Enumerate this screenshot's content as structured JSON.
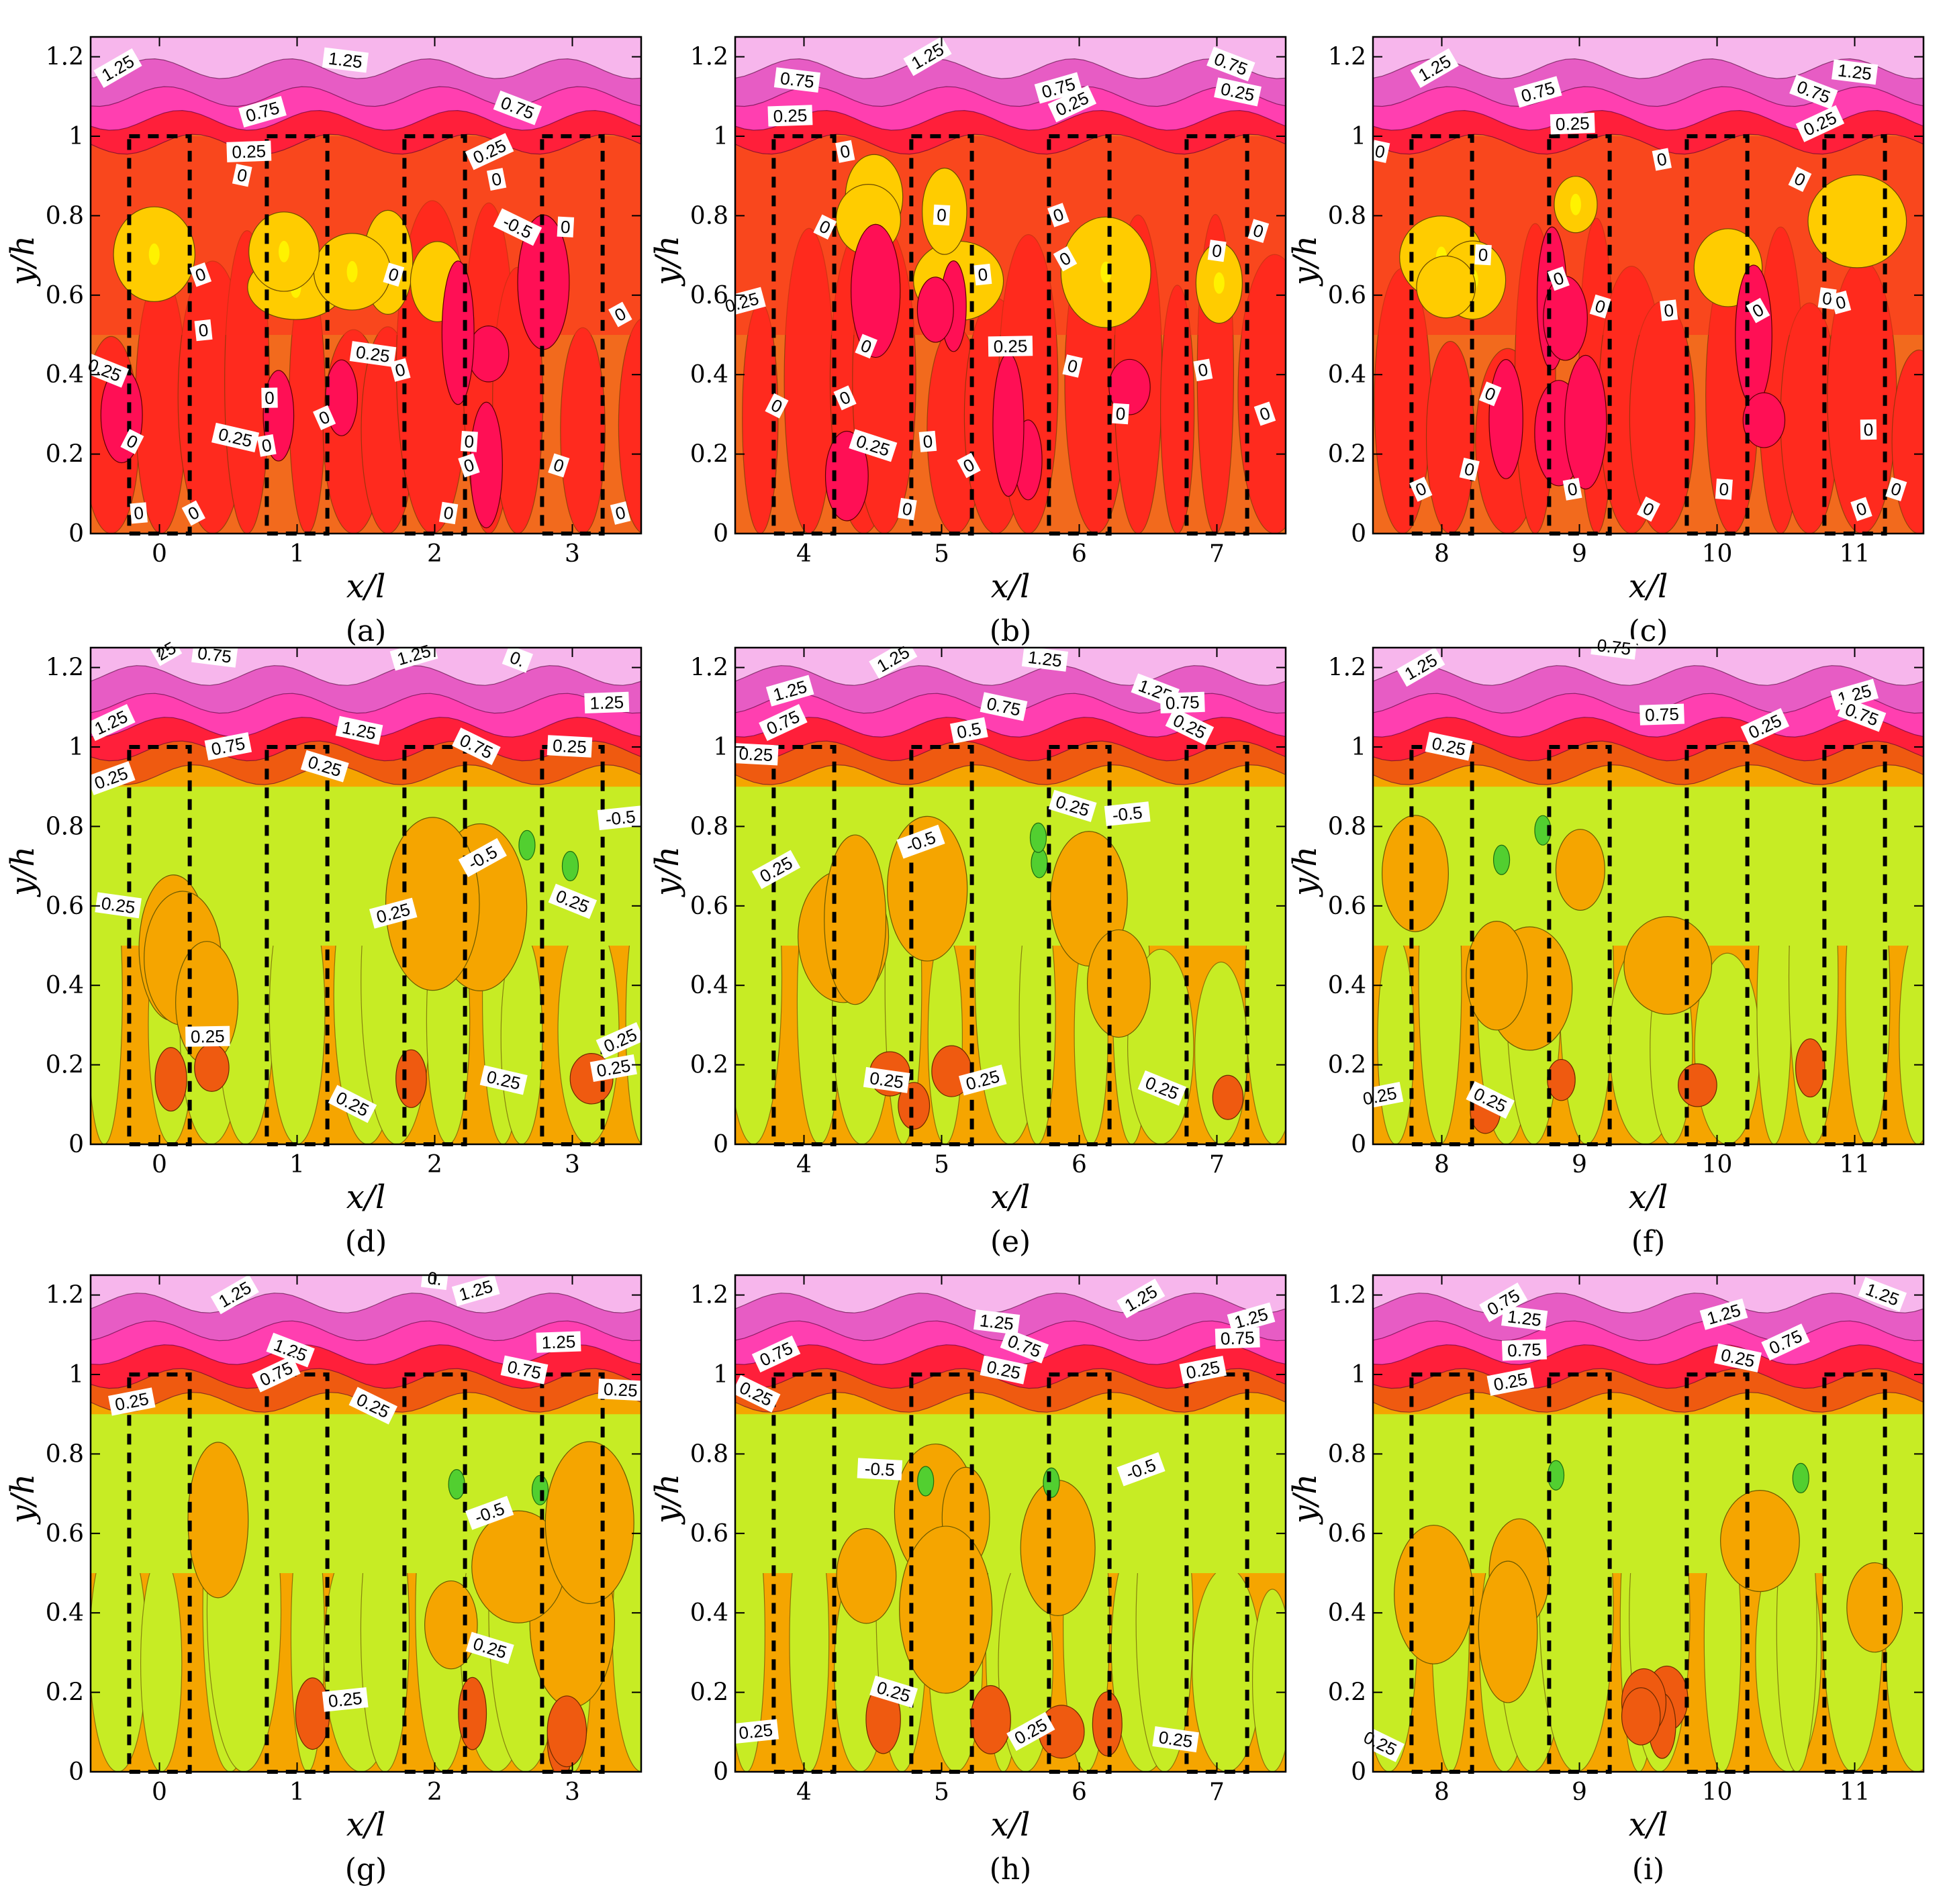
{
  "chart_data": [
    {
      "panel": "(a)",
      "type": "heatmap",
      "plot_kind": "contour",
      "xlabel": "x/l",
      "ylabel": "y/h",
      "xlim": [
        -0.5,
        3.5
      ],
      "ylim": [
        0,
        1.25
      ],
      "xticks": [
        0,
        1,
        2,
        3
      ],
      "yticks": [
        0,
        0.2,
        0.4,
        0.6,
        0.8,
        1,
        1.2
      ],
      "scheme": "warm",
      "contour_labels": [
        {
          "text": "1.25",
          "x": -0.3,
          "y": 1.17
        },
        {
          "text": "1.25",
          "x": 1.35,
          "y": 1.19
        },
        {
          "text": "0.75",
          "x": 0.75,
          "y": 1.06
        },
        {
          "text": "0.75",
          "x": 2.6,
          "y": 1.07
        },
        {
          "text": "0.25",
          "x": 0.65,
          "y": 0.96
        },
        {
          "text": "0.25",
          "x": 2.4,
          "y": 0.96
        },
        {
          "text": "0",
          "x": 0.6,
          "y": 0.9
        },
        {
          "text": "0",
          "x": 2.45,
          "y": 0.89
        },
        {
          "text": "-0.5",
          "x": 2.6,
          "y": 0.77
        },
        {
          "text": "0",
          "x": 2.95,
          "y": 0.77
        },
        {
          "text": "0",
          "x": 0.3,
          "y": 0.65
        },
        {
          "text": "0",
          "x": 1.7,
          "y": 0.65
        },
        {
          "text": "0",
          "x": 0.32,
          "y": 0.51
        },
        {
          "text": "0",
          "x": 3.35,
          "y": 0.55
        },
        {
          "text": "0.25",
          "x": 1.55,
          "y": 0.45
        },
        {
          "text": "0",
          "x": 1.75,
          "y": 0.41
        },
        {
          "text": "0.25",
          "x": -0.4,
          "y": 0.41
        },
        {
          "text": "0",
          "x": 0.8,
          "y": 0.34
        },
        {
          "text": "0",
          "x": 1.2,
          "y": 0.29
        },
        {
          "text": "0.25",
          "x": 0.55,
          "y": 0.24
        },
        {
          "text": "0",
          "x": 0.78,
          "y": 0.22
        },
        {
          "text": "0",
          "x": -0.2,
          "y": 0.23
        },
        {
          "text": "0",
          "x": 2.25,
          "y": 0.23
        },
        {
          "text": "0",
          "x": 2.25,
          "y": 0.17
        },
        {
          "text": "0",
          "x": 2.9,
          "y": 0.17
        },
        {
          "text": "0",
          "x": -0.15,
          "y": 0.05
        },
        {
          "text": "0",
          "x": 0.25,
          "y": 0.05
        },
        {
          "text": "0",
          "x": 2.1,
          "y": 0.05
        },
        {
          "text": "0",
          "x": 3.35,
          "y": 0.05
        }
      ]
    },
    {
      "panel": "(b)",
      "type": "heatmap",
      "plot_kind": "contour",
      "xlabel": "x/l",
      "ylabel": "y/h",
      "xlim": [
        3.5,
        7.5
      ],
      "ylim": [
        0,
        1.25
      ],
      "xticks": [
        4,
        5,
        6,
        7
      ],
      "yticks": [
        0,
        0.2,
        0.4,
        0.6,
        0.8,
        1,
        1.2
      ],
      "scheme": "warm",
      "contour_labels": [
        {
          "text": "1.25",
          "x": 4.9,
          "y": 1.2
        },
        {
          "text": "0.75",
          "x": 3.95,
          "y": 1.14
        },
        {
          "text": "0.75",
          "x": 5.85,
          "y": 1.12
        },
        {
          "text": "0.75",
          "x": 7.1,
          "y": 1.18
        },
        {
          "text": "0.25",
          "x": 3.9,
          "y": 1.05
        },
        {
          "text": "0.25",
          "x": 5.95,
          "y": 1.08
        },
        {
          "text": "0.25",
          "x": 7.15,
          "y": 1.11
        },
        {
          "text": "0",
          "x": 4.3,
          "y": 0.96
        },
        {
          "text": "0",
          "x": 4.15,
          "y": 0.77
        },
        {
          "text": "0",
          "x": 5.0,
          "y": 0.8
        },
        {
          "text": "0",
          "x": 5.85,
          "y": 0.8
        },
        {
          "text": "0",
          "x": 7.3,
          "y": 0.76
        },
        {
          "text": "0",
          "x": 5.3,
          "y": 0.65
        },
        {
          "text": "0",
          "x": 5.9,
          "y": 0.69
        },
        {
          "text": "0",
          "x": 7.0,
          "y": 0.71
        },
        {
          "text": "0.25",
          "x": 3.55,
          "y": 0.58
        },
        {
          "text": "0",
          "x": 4.45,
          "y": 0.47
        },
        {
          "text": "0.25",
          "x": 5.5,
          "y": 0.47
        },
        {
          "text": "0",
          "x": 4.3,
          "y": 0.34
        },
        {
          "text": "0",
          "x": 5.95,
          "y": 0.42
        },
        {
          "text": "0",
          "x": 6.9,
          "y": 0.41
        },
        {
          "text": "0",
          "x": 3.8,
          "y": 0.32
        },
        {
          "text": "0",
          "x": 6.3,
          "y": 0.3
        },
        {
          "text": "0",
          "x": 7.35,
          "y": 0.3
        },
        {
          "text": "0.25",
          "x": 4.5,
          "y": 0.22
        },
        {
          "text": "0",
          "x": 4.9,
          "y": 0.23
        },
        {
          "text": "0",
          "x": 5.2,
          "y": 0.17
        },
        {
          "text": "0",
          "x": 4.75,
          "y": 0.06
        }
      ]
    },
    {
      "panel": "(c)",
      "type": "heatmap",
      "plot_kind": "contour",
      "xlabel": "x/l",
      "ylabel": "y/h",
      "xlim": [
        7.5,
        11.5
      ],
      "ylim": [
        0,
        1.25
      ],
      "xticks": [
        8,
        9,
        10,
        11
      ],
      "yticks": [
        0,
        0.2,
        0.4,
        0.6,
        0.8,
        1,
        1.2
      ],
      "scheme": "warm",
      "contour_labels": [
        {
          "text": "1.25",
          "x": 7.95,
          "y": 1.17
        },
        {
          "text": "1.25",
          "x": 11.0,
          "y": 1.16
        },
        {
          "text": "0.75",
          "x": 8.7,
          "y": 1.11
        },
        {
          "text": "0.75",
          "x": 10.7,
          "y": 1.11
        },
        {
          "text": "0.25",
          "x": 8.95,
          "y": 1.03
        },
        {
          "text": "0.25",
          "x": 10.75,
          "y": 1.03
        },
        {
          "text": "0",
          "x": 7.55,
          "y": 0.96
        },
        {
          "text": "0",
          "x": 9.6,
          "y": 0.94
        },
        {
          "text": "0",
          "x": 10.6,
          "y": 0.89
        },
        {
          "text": "0",
          "x": 8.3,
          "y": 0.7
        },
        {
          "text": "0",
          "x": 8.85,
          "y": 0.64
        },
        {
          "text": "0",
          "x": 9.15,
          "y": 0.57
        },
        {
          "text": "0",
          "x": 9.65,
          "y": 0.56
        },
        {
          "text": "0",
          "x": 10.3,
          "y": 0.56
        },
        {
          "text": "0",
          "x": 10.8,
          "y": 0.59
        },
        {
          "text": "0",
          "x": 10.9,
          "y": 0.58
        },
        {
          "text": "0",
          "x": 8.35,
          "y": 0.35
        },
        {
          "text": "0",
          "x": 11.1,
          "y": 0.26
        },
        {
          "text": "0",
          "x": 7.85,
          "y": 0.11
        },
        {
          "text": "0",
          "x": 8.2,
          "y": 0.16
        },
        {
          "text": "0",
          "x": 8.95,
          "y": 0.11
        },
        {
          "text": "0",
          "x": 9.5,
          "y": 0.06
        },
        {
          "text": "0",
          "x": 10.05,
          "y": 0.11
        },
        {
          "text": "0",
          "x": 11.05,
          "y": 0.06
        },
        {
          "text": "0",
          "x": 11.3,
          "y": 0.11
        }
      ]
    },
    {
      "panel": "(d)",
      "type": "heatmap",
      "plot_kind": "contour",
      "xlabel": "x/l",
      "ylabel": "y/h",
      "xlim": [
        -0.5,
        3.5
      ],
      "ylim": [
        0,
        1.25
      ],
      "xticks": [
        0,
        1,
        2,
        3
      ],
      "yticks": [
        0,
        0.2,
        0.4,
        0.6,
        0.8,
        1,
        1.2
      ],
      "scheme": "cool",
      "contour_labels": [
        {
          "text": "25",
          "x": 0.05,
          "y": 1.24
        },
        {
          "text": "0.75",
          "x": 0.4,
          "y": 1.23
        },
        {
          "text": "1.25",
          "x": 1.85,
          "y": 1.23
        },
        {
          "text": "0.",
          "x": 2.6,
          "y": 1.22
        },
        {
          "text": "1.25",
          "x": 3.25,
          "y": 1.11
        },
        {
          "text": "1.25",
          "x": -0.35,
          "y": 1.06
        },
        {
          "text": "1.25",
          "x": 1.45,
          "y": 1.04
        },
        {
          "text": "0.75",
          "x": 0.5,
          "y": 1.0
        },
        {
          "text": "0.75",
          "x": 2.3,
          "y": 1.0
        },
        {
          "text": "0.25",
          "x": 2.98,
          "y": 1.0
        },
        {
          "text": "0.25",
          "x": -0.35,
          "y": 0.92
        },
        {
          "text": "0.25",
          "x": 1.2,
          "y": 0.95
        },
        {
          "text": "-0.5",
          "x": 3.35,
          "y": 0.82
        },
        {
          "text": "-0.5",
          "x": 2.35,
          "y": 0.72
        },
        {
          "text": "0.25",
          "x": -0.3,
          "y": 0.6
        },
        {
          "text": "0.25",
          "x": 1.7,
          "y": 0.58
        },
        {
          "text": "0.25",
          "x": 3.0,
          "y": 0.61
        },
        {
          "text": "0.25",
          "x": 0.35,
          "y": 0.27
        },
        {
          "text": "0.25",
          "x": 3.35,
          "y": 0.26
        },
        {
          "text": "0.25",
          "x": 2.5,
          "y": 0.16
        },
        {
          "text": "0.25",
          "x": 3.3,
          "y": 0.19
        },
        {
          "text": "0.25",
          "x": 1.4,
          "y": 0.1
        }
      ]
    },
    {
      "panel": "(e)",
      "type": "heatmap",
      "plot_kind": "contour",
      "xlabel": "x/l",
      "ylabel": "y/h",
      "xlim": [
        3.5,
        7.5
      ],
      "ylim": [
        0,
        1.25
      ],
      "xticks": [
        4,
        5,
        6,
        7
      ],
      "yticks": [
        0,
        0.2,
        0.4,
        0.6,
        0.8,
        1,
        1.2
      ],
      "scheme": "cool",
      "contour_labels": [
        {
          "text": "1.25",
          "x": 4.65,
          "y": 1.22
        },
        {
          "text": "1.25",
          "x": 5.75,
          "y": 1.22
        },
        {
          "text": "1.25",
          "x": 3.9,
          "y": 1.14
        },
        {
          "text": "1.25",
          "x": 6.55,
          "y": 1.14
        },
        {
          "text": "0.75",
          "x": 6.75,
          "y": 1.11
        },
        {
          "text": "0.75",
          "x": 3.85,
          "y": 1.06
        },
        {
          "text": "0.75",
          "x": 5.45,
          "y": 1.1
        },
        {
          "text": "0.5",
          "x": 5.2,
          "y": 1.04
        },
        {
          "text": "0.25",
          "x": 6.8,
          "y": 1.05
        },
        {
          "text": "0.25",
          "x": 3.65,
          "y": 0.98
        },
        {
          "text": "-0.5",
          "x": 4.85,
          "y": 0.76
        },
        {
          "text": "0.25",
          "x": 5.95,
          "y": 0.85
        },
        {
          "text": "-0.5",
          "x": 6.35,
          "y": 0.83
        },
        {
          "text": "0.25",
          "x": 3.8,
          "y": 0.69
        },
        {
          "text": "0.25",
          "x": 4.6,
          "y": 0.16
        },
        {
          "text": "0.25",
          "x": 5.3,
          "y": 0.16
        },
        {
          "text": "0.25",
          "x": 6.6,
          "y": 0.14
        }
      ]
    },
    {
      "panel": "(f)",
      "type": "heatmap",
      "plot_kind": "contour",
      "xlabel": "x/l",
      "ylabel": "y/h",
      "xlim": [
        7.5,
        11.5
      ],
      "ylim": [
        0,
        1.25
      ],
      "xticks": [
        8,
        9,
        10,
        11
      ],
      "yticks": [
        0,
        0.2,
        0.4,
        0.6,
        0.8,
        1,
        1.2
      ],
      "scheme": "cool",
      "contour_labels": [
        {
          "text": "1.25",
          "x": 7.85,
          "y": 1.2
        },
        {
          "text": "0.75",
          "x": 9.25,
          "y": 1.25
        },
        {
          "text": "1.25",
          "x": 11.0,
          "y": 1.13
        },
        {
          "text": "0.75",
          "x": 11.05,
          "y": 1.08
        },
        {
          "text": "0.75",
          "x": 9.6,
          "y": 1.08
        },
        {
          "text": "0.25",
          "x": 10.35,
          "y": 1.05
        },
        {
          "text": "0.25",
          "x": 8.05,
          "y": 1.0
        },
        {
          "text": "0.25",
          "x": 7.55,
          "y": 0.12
        },
        {
          "text": "0.25",
          "x": 8.35,
          "y": 0.11
        }
      ]
    },
    {
      "panel": "(g)",
      "type": "heatmap",
      "plot_kind": "contour",
      "xlabel": "x/l",
      "ylabel": "y/h",
      "xlim": [
        -0.5,
        3.5
      ],
      "ylim": [
        0,
        1.25
      ],
      "xticks": [
        0,
        1,
        2,
        3
      ],
      "yticks": [
        0,
        0.2,
        0.4,
        0.6,
        0.8,
        1,
        1.2
      ],
      "scheme": "cool",
      "contour_labels": [
        {
          "text": "1.25",
          "x": 0.55,
          "y": 1.2
        },
        {
          "text": "0.",
          "x": 2.0,
          "y": 1.24
        },
        {
          "text": "1.25",
          "x": 2.3,
          "y": 1.21
        },
        {
          "text": "1.25",
          "x": 0.95,
          "y": 1.06
        },
        {
          "text": "1.25",
          "x": 2.9,
          "y": 1.08
        },
        {
          "text": "0.75",
          "x": 0.85,
          "y": 1.0
        },
        {
          "text": "0.75",
          "x": 2.65,
          "y": 1.01
        },
        {
          "text": "0.25",
          "x": -0.2,
          "y": 0.93
        },
        {
          "text": "0.25",
          "x": 1.55,
          "y": 0.92
        },
        {
          "text": "0.25",
          "x": 3.35,
          "y": 0.96
        },
        {
          "text": "-0.5",
          "x": 2.4,
          "y": 0.65
        },
        {
          "text": "0.25",
          "x": 2.4,
          "y": 0.31
        },
        {
          "text": "0.25",
          "x": 1.35,
          "y": 0.18
        }
      ]
    },
    {
      "panel": "(h)",
      "type": "heatmap",
      "plot_kind": "contour",
      "xlabel": "x/l",
      "ylabel": "y/h",
      "xlim": [
        3.5,
        7.5
      ],
      "ylim": [
        0,
        1.25
      ],
      "xticks": [
        4,
        5,
        6,
        7
      ],
      "yticks": [
        0,
        0.2,
        0.4,
        0.6,
        0.8,
        1,
        1.2
      ],
      "scheme": "cool",
      "contour_labels": [
        {
          "text": "1.25",
          "x": 6.45,
          "y": 1.19
        },
        {
          "text": "1.25",
          "x": 5.4,
          "y": 1.13
        },
        {
          "text": "1.25",
          "x": 7.25,
          "y": 1.14
        },
        {
          "text": "0.75",
          "x": 5.6,
          "y": 1.07
        },
        {
          "text": "0.75",
          "x": 7.15,
          "y": 1.09
        },
        {
          "text": "0.75",
          "x": 3.8,
          "y": 1.05
        },
        {
          "text": "0.25",
          "x": 5.45,
          "y": 1.01
        },
        {
          "text": "0.25",
          "x": 6.9,
          "y": 1.01
        },
        {
          "text": "0.25",
          "x": 3.65,
          "y": 0.95
        },
        {
          "text": "-0.5",
          "x": 4.55,
          "y": 0.76
        },
        {
          "text": "-0.5",
          "x": 6.45,
          "y": 0.76
        },
        {
          "text": "0.25",
          "x": 4.65,
          "y": 0.2
        },
        {
          "text": "0.25",
          "x": 3.65,
          "y": 0.1
        },
        {
          "text": "0.25",
          "x": 5.65,
          "y": 0.1
        },
        {
          "text": "0.25",
          "x": 6.7,
          "y": 0.08
        }
      ]
    },
    {
      "panel": "(i)",
      "type": "heatmap",
      "plot_kind": "contour",
      "xlabel": "x/l",
      "ylabel": "y/h",
      "xlim": [
        7.5,
        11.5
      ],
      "ylim": [
        0,
        1.25
      ],
      "xticks": [
        8,
        9,
        10,
        11
      ],
      "yticks": [
        0,
        0.2,
        0.4,
        0.6,
        0.8,
        1,
        1.2
      ],
      "scheme": "cool",
      "contour_labels": [
        {
          "text": "0.75",
          "x": 8.45,
          "y": 1.18
        },
        {
          "text": "1.25",
          "x": 8.6,
          "y": 1.14
        },
        {
          "text": "1.25",
          "x": 10.05,
          "y": 1.15
        },
        {
          "text": "1.25",
          "x": 11.2,
          "y": 1.2
        },
        {
          "text": "0.75",
          "x": 8.6,
          "y": 1.06
        },
        {
          "text": "0.75",
          "x": 10.5,
          "y": 1.08
        },
        {
          "text": "0.25",
          "x": 10.15,
          "y": 1.04
        },
        {
          "text": "0.25",
          "x": 8.5,
          "y": 0.98
        },
        {
          "text": "0.25",
          "x": 7.55,
          "y": 0.07
        }
      ]
    }
  ],
  "panel_captions": [
    "(a)",
    "(b)",
    "(c)",
    "(d)",
    "(e)",
    "(f)",
    "(g)",
    "(h)",
    "(i)"
  ],
  "colors": {
    "warm": {
      "top": "#e75cc4",
      "top_light": "#f7b6ec",
      "band1": "#ff3fb0",
      "band2": "#ff1f3a",
      "main": "#f26a1d",
      "body": "#ff2a1e",
      "hot": "#ff0f55",
      "pale": "#ffcc00",
      "yellow": "#fff200"
    },
    "cool": {
      "top": "#e75cc4",
      "top_light": "#f7b6ec",
      "band1": "#ff3fb0",
      "band2": "#ff1f3a",
      "orange": "#f5a500",
      "dark_orange": "#ef5a10",
      "green": "#c7ec24",
      "deep_green": "#52cf30"
    },
    "dashes": "#000000"
  }
}
